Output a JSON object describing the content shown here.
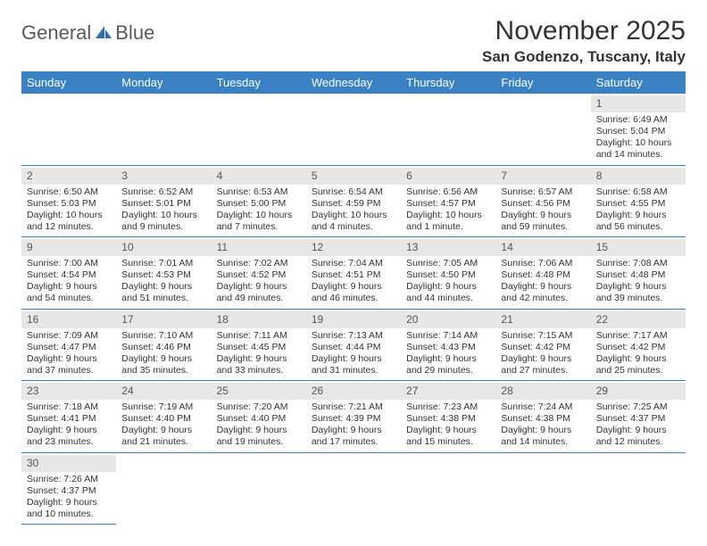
{
  "logo": {
    "word1": "General",
    "word2": "Blue",
    "sail_color": "#2f6fb0"
  },
  "header": {
    "title": "November 2025",
    "location": "San Godenzo, Tuscany, Italy",
    "title_color": "#333333"
  },
  "calendar": {
    "header_bg": "#3a81c4",
    "header_text": "#ffffff",
    "daynum_bg": "#e7e7e7",
    "rule_color": "#3a81c4",
    "day_headers": [
      "Sunday",
      "Monday",
      "Tuesday",
      "Wednesday",
      "Thursday",
      "Friday",
      "Saturday"
    ],
    "first_weekday_index": 6,
    "days": [
      {
        "n": 1,
        "sr": "6:49 AM",
        "ss": "5:04 PM",
        "dl": "10 hours and 14 minutes."
      },
      {
        "n": 2,
        "sr": "6:50 AM",
        "ss": "5:03 PM",
        "dl": "10 hours and 12 minutes."
      },
      {
        "n": 3,
        "sr": "6:52 AM",
        "ss": "5:01 PM",
        "dl": "10 hours and 9 minutes."
      },
      {
        "n": 4,
        "sr": "6:53 AM",
        "ss": "5:00 PM",
        "dl": "10 hours and 7 minutes."
      },
      {
        "n": 5,
        "sr": "6:54 AM",
        "ss": "4:59 PM",
        "dl": "10 hours and 4 minutes."
      },
      {
        "n": 6,
        "sr": "6:56 AM",
        "ss": "4:57 PM",
        "dl": "10 hours and 1 minute."
      },
      {
        "n": 7,
        "sr": "6:57 AM",
        "ss": "4:56 PM",
        "dl": "9 hours and 59 minutes."
      },
      {
        "n": 8,
        "sr": "6:58 AM",
        "ss": "4:55 PM",
        "dl": "9 hours and 56 minutes."
      },
      {
        "n": 9,
        "sr": "7:00 AM",
        "ss": "4:54 PM",
        "dl": "9 hours and 54 minutes."
      },
      {
        "n": 10,
        "sr": "7:01 AM",
        "ss": "4:53 PM",
        "dl": "9 hours and 51 minutes."
      },
      {
        "n": 11,
        "sr": "7:02 AM",
        "ss": "4:52 PM",
        "dl": "9 hours and 49 minutes."
      },
      {
        "n": 12,
        "sr": "7:04 AM",
        "ss": "4:51 PM",
        "dl": "9 hours and 46 minutes."
      },
      {
        "n": 13,
        "sr": "7:05 AM",
        "ss": "4:50 PM",
        "dl": "9 hours and 44 minutes."
      },
      {
        "n": 14,
        "sr": "7:06 AM",
        "ss": "4:48 PM",
        "dl": "9 hours and 42 minutes."
      },
      {
        "n": 15,
        "sr": "7:08 AM",
        "ss": "4:48 PM",
        "dl": "9 hours and 39 minutes."
      },
      {
        "n": 16,
        "sr": "7:09 AM",
        "ss": "4:47 PM",
        "dl": "9 hours and 37 minutes."
      },
      {
        "n": 17,
        "sr": "7:10 AM",
        "ss": "4:46 PM",
        "dl": "9 hours and 35 minutes."
      },
      {
        "n": 18,
        "sr": "7:11 AM",
        "ss": "4:45 PM",
        "dl": "9 hours and 33 minutes."
      },
      {
        "n": 19,
        "sr": "7:13 AM",
        "ss": "4:44 PM",
        "dl": "9 hours and 31 minutes."
      },
      {
        "n": 20,
        "sr": "7:14 AM",
        "ss": "4:43 PM",
        "dl": "9 hours and 29 minutes."
      },
      {
        "n": 21,
        "sr": "7:15 AM",
        "ss": "4:42 PM",
        "dl": "9 hours and 27 minutes."
      },
      {
        "n": 22,
        "sr": "7:17 AM",
        "ss": "4:42 PM",
        "dl": "9 hours and 25 minutes."
      },
      {
        "n": 23,
        "sr": "7:18 AM",
        "ss": "4:41 PM",
        "dl": "9 hours and 23 minutes."
      },
      {
        "n": 24,
        "sr": "7:19 AM",
        "ss": "4:40 PM",
        "dl": "9 hours and 21 minutes."
      },
      {
        "n": 25,
        "sr": "7:20 AM",
        "ss": "4:40 PM",
        "dl": "9 hours and 19 minutes."
      },
      {
        "n": 26,
        "sr": "7:21 AM",
        "ss": "4:39 PM",
        "dl": "9 hours and 17 minutes."
      },
      {
        "n": 27,
        "sr": "7:23 AM",
        "ss": "4:38 PM",
        "dl": "9 hours and 15 minutes."
      },
      {
        "n": 28,
        "sr": "7:24 AM",
        "ss": "4:38 PM",
        "dl": "9 hours and 14 minutes."
      },
      {
        "n": 29,
        "sr": "7:25 AM",
        "ss": "4:37 PM",
        "dl": "9 hours and 12 minutes."
      },
      {
        "n": 30,
        "sr": "7:26 AM",
        "ss": "4:37 PM",
        "dl": "9 hours and 10 minutes."
      }
    ],
    "labels": {
      "sunrise": "Sunrise:",
      "sunset": "Sunset:",
      "daylight": "Daylight:"
    }
  }
}
